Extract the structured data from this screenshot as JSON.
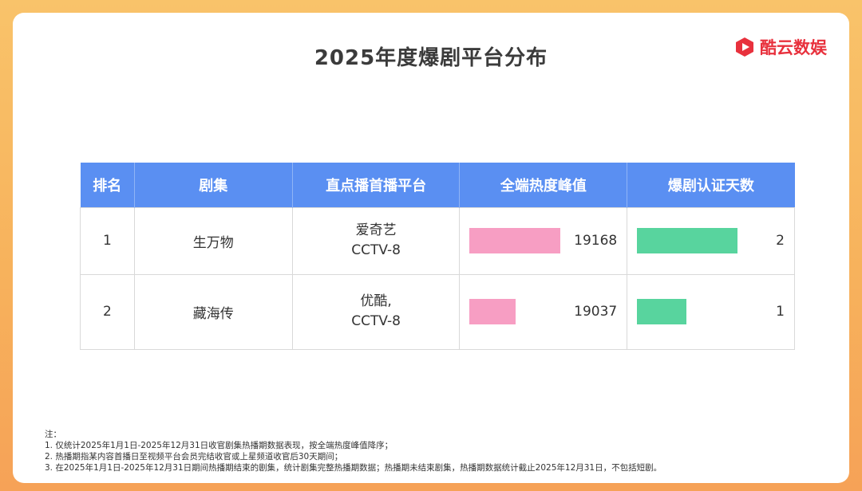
{
  "title": "2025年度爆剧平台分布",
  "brand": {
    "name": "酷云数娱",
    "icon": "play-logo-icon",
    "color": "#e8313d"
  },
  "table": {
    "headers": [
      "排名",
      "剧集",
      "直点播首播平台",
      "全端热度峰值",
      "爆剧认证天数"
    ],
    "rows": [
      {
        "rank": "1",
        "name": "生万物",
        "platform": [
          "爱奇艺",
          "CCTV-8"
        ],
        "heat": "19168",
        "days": "2"
      },
      {
        "rank": "2",
        "name": "藏海传",
        "platform": [
          "优酷,",
          "CCTV-8"
        ],
        "heat": "19037",
        "days": "1"
      }
    ]
  },
  "chart_data": {
    "type": "table",
    "columns": [
      "排名",
      "剧集",
      "直点播首播平台",
      "全端热度峰值",
      "爆剧认证天数"
    ],
    "categories": [
      "生万物",
      "藏海传"
    ],
    "series": [
      {
        "name": "全端热度峰值",
        "values": [
          19168,
          19037
        ],
        "color": "#f79ec3"
      },
      {
        "name": "爆剧认证天数",
        "values": [
          2,
          1
        ],
        "color": "#58d49e"
      }
    ]
  },
  "notes": [
    "注：",
    "1. 仅统计2025年1月1日-2025年12月31日收官剧集热播期数据表现，按全端热度峰值降序；",
    "2. 热播期指某内容首播日至视频平台会员完结收官或上星频道收官后30天期间；",
    "3. 在2025年1月1日-2025年12月31日期间热播期结束的剧集，统计剧集完整热播期数据；热播期未结束剧集，热播期数据统计截止2025年12月31日，不包括短剧。"
  ],
  "colors": {
    "header": "#5a8ff2",
    "background": "#f8b860"
  }
}
